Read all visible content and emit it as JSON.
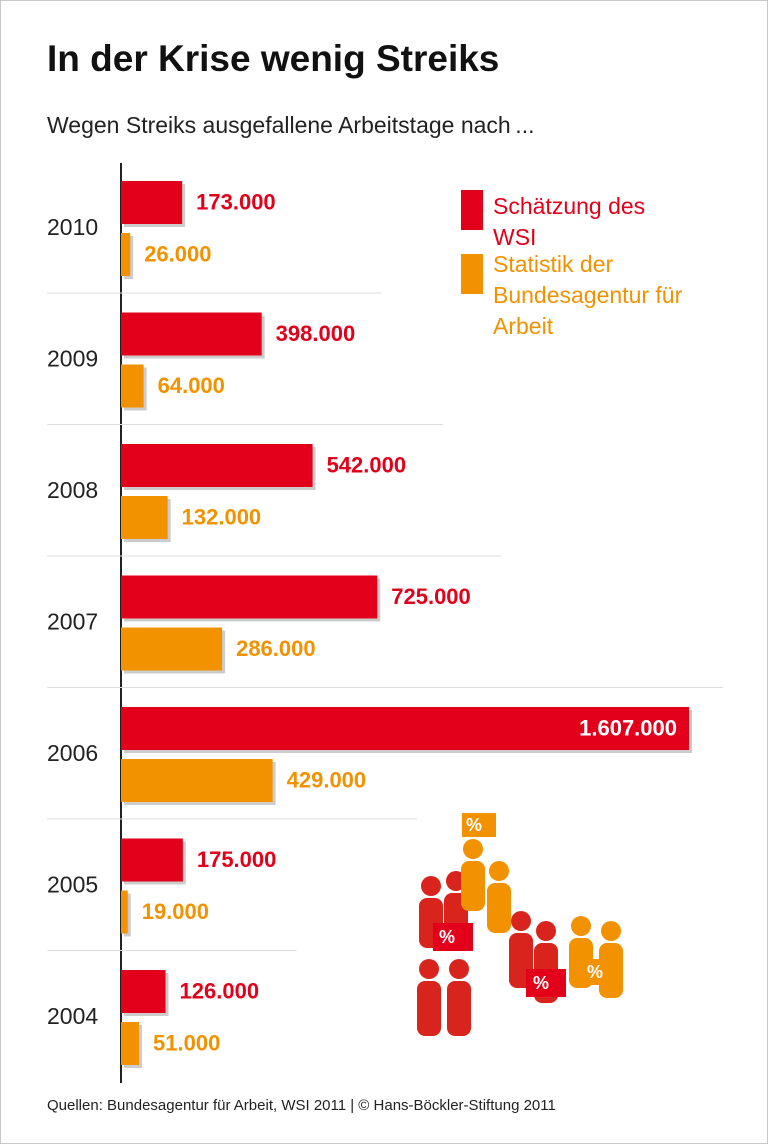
{
  "chart_data": {
    "type": "bar",
    "orientation": "horizontal",
    "title": "In der Krise wenig Streiks",
    "subtitle": "Wegen Streiks ausgefallene Arbeitstage nach ...",
    "categories": [
      "2010",
      "2009",
      "2008",
      "2007",
      "2006",
      "2005",
      "2004"
    ],
    "series": [
      {
        "name": "Schätzung des WSI",
        "color": "#e2001a",
        "values": [
          173000,
          398000,
          542000,
          725000,
          1607000,
          175000,
          126000
        ],
        "value_labels": [
          "173.000",
          "398.000",
          "542.000",
          "725.000",
          "1.607.000",
          "175.000",
          "126.000"
        ]
      },
      {
        "name": "Statistik der Bundesagentur für Arbeit",
        "color": "#f39200",
        "values": [
          26000,
          64000,
          132000,
          286000,
          429000,
          19000,
          51000
        ],
        "value_labels": [
          "26.000",
          "64.000",
          "132.000",
          "286.000",
          "429.000",
          "19.000",
          "51.000"
        ]
      }
    ],
    "source": "Quellen: Bundesagentur für Arbeit, WSI 2011 | © Hans-Böckler-Stiftung 2011"
  }
}
